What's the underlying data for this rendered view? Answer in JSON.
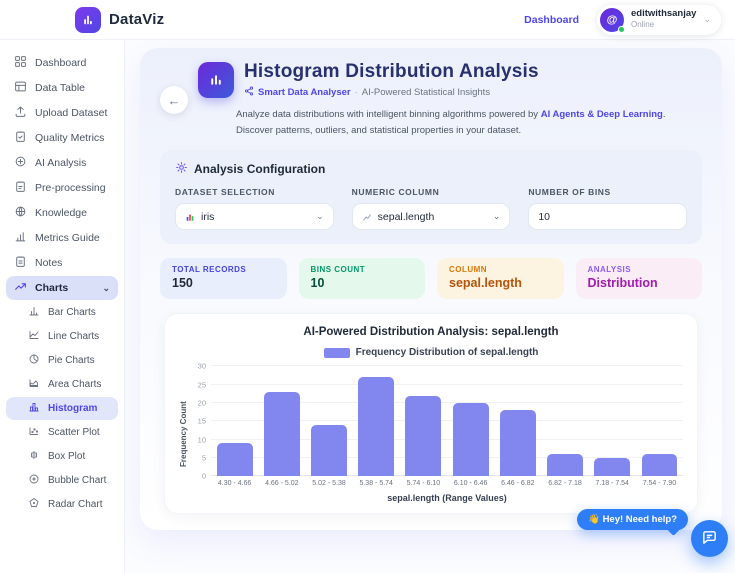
{
  "header": {
    "brand": "DataViz",
    "nav_dashboard": "Dashboard",
    "user": {
      "name": "editwithsanjay",
      "status": "Online",
      "avatar_glyph": "@"
    }
  },
  "sidebar": {
    "items": [
      {
        "label": "Dashboard"
      },
      {
        "label": "Data Table"
      },
      {
        "label": "Upload Dataset"
      },
      {
        "label": "Quality Metrics"
      },
      {
        "label": "AI Analysis"
      },
      {
        "label": "Pre-processing"
      },
      {
        "label": "Knowledge"
      },
      {
        "label": "Metrics Guide"
      },
      {
        "label": "Notes"
      }
    ],
    "charts_group": {
      "label": "Charts"
    },
    "chart_items": [
      {
        "label": "Bar Charts"
      },
      {
        "label": "Line Charts"
      },
      {
        "label": "Pie Charts"
      },
      {
        "label": "Area Charts"
      },
      {
        "label": "Histogram",
        "active": true
      },
      {
        "label": "Scatter Plot"
      },
      {
        "label": "Box Plot"
      },
      {
        "label": "Bubble Chart"
      },
      {
        "label": "Radar Chart"
      }
    ]
  },
  "page": {
    "title": "Histogram Distribution Analysis",
    "subtitle_brand": "Smart Data Analyser",
    "subtitle_sep": "·",
    "subtitle_rest": "AI-Powered Statistical Insights",
    "description": {
      "line1_pre": "Analyze data distributions with intelligent binning algorithms powered by ",
      "line1_em": "AI Agents & Deep Learning",
      "line1_post": ".",
      "line2": "Discover patterns, outliers, and statistical properties in your dataset."
    }
  },
  "config": {
    "heading": "Analysis Configuration",
    "fields": [
      {
        "label": "DATASET SELECTION",
        "value": "iris"
      },
      {
        "label": "NUMERIC COLUMN",
        "value": "sepal.length"
      },
      {
        "label": "NUMBER OF BINS",
        "value": "10"
      }
    ]
  },
  "stats": [
    {
      "label": "TOTAL RECORDS",
      "value": "150",
      "accent": "#4543d8"
    },
    {
      "label": "BINS COUNT",
      "value": "10",
      "accent": "#059669"
    },
    {
      "label": "COLUMN",
      "value": "sepal.length",
      "accent": "#d97706"
    },
    {
      "label": "ANALYSIS",
      "value": "Distribution",
      "accent": "#a21caf"
    }
  ],
  "chart_data": {
    "type": "bar",
    "title": "AI-Powered Distribution Analysis: sepal.length",
    "legend": "Frequency Distribution of sepal.length",
    "categories": [
      "4.30 - 4.66",
      "4.66 - 5.02",
      "5.02 - 5.38",
      "5.38 - 5.74",
      "5.74 - 6.10",
      "6.10 - 6.46",
      "6.46 - 6.82",
      "6.82 - 7.18",
      "7.18 - 7.54",
      "7.54 - 7.90"
    ],
    "values": [
      9,
      23,
      14,
      27,
      22,
      20,
      18,
      6,
      5,
      6
    ],
    "xlabel": "sepal.length (Range Values)",
    "ylabel": "Frequency Count",
    "ylim": [
      0,
      30
    ],
    "yticks": [
      0,
      5,
      10,
      15,
      20,
      25,
      30
    ],
    "bar_color": "#8286ef",
    "grid": true,
    "legend_position": "top"
  },
  "chat": {
    "tooltip_emoji": "👋",
    "tooltip_text": "Hey! Need help?"
  }
}
